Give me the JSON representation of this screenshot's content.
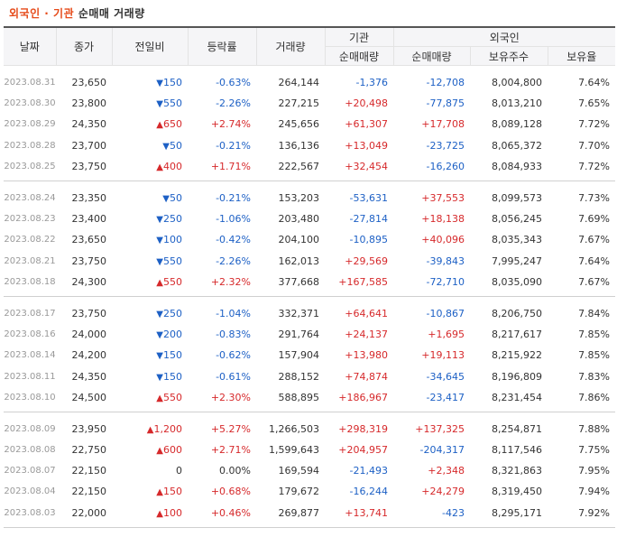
{
  "title": {
    "highlight": "외국인 · 기관",
    "rest": "순매매 거래량"
  },
  "headers": {
    "date": "날짜",
    "close": "종가",
    "change": "전일비",
    "rate": "등락률",
    "volume": "거래량",
    "inst": "기관",
    "foreign": "외국인",
    "inst_net": "순매매량",
    "foreign_net": "순매매량",
    "holdings": "보유주수",
    "ratio": "보유율"
  },
  "colors": {
    "up": "#d6292b",
    "down": "#1d60c5"
  },
  "groups": [
    [
      {
        "date": "2023.08.31",
        "close": "23,650",
        "dir": "down",
        "change": "150",
        "rate": "-0.63%",
        "volume": "264,144",
        "inst": "-1,376",
        "foreign": "-12,708",
        "holdings": "8,004,800",
        "ratio": "7.64%"
      },
      {
        "date": "2023.08.30",
        "close": "23,800",
        "dir": "down",
        "change": "550",
        "rate": "-2.26%",
        "volume": "227,215",
        "inst": "+20,498",
        "foreign": "-77,875",
        "holdings": "8,013,210",
        "ratio": "7.65%"
      },
      {
        "date": "2023.08.29",
        "close": "24,350",
        "dir": "up",
        "change": "650",
        "rate": "+2.74%",
        "volume": "245,656",
        "inst": "+61,307",
        "foreign": "+17,708",
        "holdings": "8,089,128",
        "ratio": "7.72%"
      },
      {
        "date": "2023.08.28",
        "close": "23,700",
        "dir": "down",
        "change": "50",
        "rate": "-0.21%",
        "volume": "136,136",
        "inst": "+13,049",
        "foreign": "-23,725",
        "holdings": "8,065,372",
        "ratio": "7.70%"
      },
      {
        "date": "2023.08.25",
        "close": "23,750",
        "dir": "up",
        "change": "400",
        "rate": "+1.71%",
        "volume": "222,567",
        "inst": "+32,454",
        "foreign": "-16,260",
        "holdings": "8,084,933",
        "ratio": "7.72%"
      }
    ],
    [
      {
        "date": "2023.08.24",
        "close": "23,350",
        "dir": "down",
        "change": "50",
        "rate": "-0.21%",
        "volume": "153,203",
        "inst": "-53,631",
        "foreign": "+37,553",
        "holdings": "8,099,573",
        "ratio": "7.73%"
      },
      {
        "date": "2023.08.23",
        "close": "23,400",
        "dir": "down",
        "change": "250",
        "rate": "-1.06%",
        "volume": "203,480",
        "inst": "-27,814",
        "foreign": "+18,138",
        "holdings": "8,056,245",
        "ratio": "7.69%"
      },
      {
        "date": "2023.08.22",
        "close": "23,650",
        "dir": "down",
        "change": "100",
        "rate": "-0.42%",
        "volume": "204,100",
        "inst": "-10,895",
        "foreign": "+40,096",
        "holdings": "8,035,343",
        "ratio": "7.67%"
      },
      {
        "date": "2023.08.21",
        "close": "23,750",
        "dir": "down",
        "change": "550",
        "rate": "-2.26%",
        "volume": "162,013",
        "inst": "+29,569",
        "foreign": "-39,843",
        "holdings": "7,995,247",
        "ratio": "7.64%"
      },
      {
        "date": "2023.08.18",
        "close": "24,300",
        "dir": "up",
        "change": "550",
        "rate": "+2.32%",
        "volume": "377,668",
        "inst": "+167,585",
        "foreign": "-72,710",
        "holdings": "8,035,090",
        "ratio": "7.67%"
      }
    ],
    [
      {
        "date": "2023.08.17",
        "close": "23,750",
        "dir": "down",
        "change": "250",
        "rate": "-1.04%",
        "volume": "332,371",
        "inst": "+64,641",
        "foreign": "-10,867",
        "holdings": "8,206,750",
        "ratio": "7.84%"
      },
      {
        "date": "2023.08.16",
        "close": "24,000",
        "dir": "down",
        "change": "200",
        "rate": "-0.83%",
        "volume": "291,764",
        "inst": "+24,137",
        "foreign": "+1,695",
        "holdings": "8,217,617",
        "ratio": "7.85%"
      },
      {
        "date": "2023.08.14",
        "close": "24,200",
        "dir": "down",
        "change": "150",
        "rate": "-0.62%",
        "volume": "157,904",
        "inst": "+13,980",
        "foreign": "+19,113",
        "holdings": "8,215,922",
        "ratio": "7.85%"
      },
      {
        "date": "2023.08.11",
        "close": "24,350",
        "dir": "down",
        "change": "150",
        "rate": "-0.61%",
        "volume": "288,152",
        "inst": "+74,874",
        "foreign": "-34,645",
        "holdings": "8,196,809",
        "ratio": "7.83%"
      },
      {
        "date": "2023.08.10",
        "close": "24,500",
        "dir": "up",
        "change": "550",
        "rate": "+2.30%",
        "volume": "588,895",
        "inst": "+186,967",
        "foreign": "-23,417",
        "holdings": "8,231,454",
        "ratio": "7.86%"
      }
    ],
    [
      {
        "date": "2023.08.09",
        "close": "23,950",
        "dir": "up",
        "change": "1,200",
        "rate": "+5.27%",
        "volume": "1,266,503",
        "inst": "+298,319",
        "foreign": "+137,325",
        "holdings": "8,254,871",
        "ratio": "7.88%"
      },
      {
        "date": "2023.08.08",
        "close": "22,750",
        "dir": "up",
        "change": "600",
        "rate": "+2.71%",
        "volume": "1,599,643",
        "inst": "+204,957",
        "foreign": "-204,317",
        "holdings": "8,117,546",
        "ratio": "7.75%"
      },
      {
        "date": "2023.08.07",
        "close": "22,150",
        "dir": "none",
        "change": "0",
        "rate": "0.00%",
        "volume": "169,594",
        "inst": "-21,493",
        "foreign": "+2,348",
        "holdings": "8,321,863",
        "ratio": "7.95%"
      },
      {
        "date": "2023.08.04",
        "close": "22,150",
        "dir": "up",
        "change": "150",
        "rate": "+0.68%",
        "volume": "179,672",
        "inst": "-16,244",
        "foreign": "+24,279",
        "holdings": "8,319,450",
        "ratio": "7.94%"
      },
      {
        "date": "2023.08.03",
        "close": "22,000",
        "dir": "up",
        "change": "100",
        "rate": "+0.46%",
        "volume": "269,877",
        "inst": "+13,741",
        "foreign": "-423",
        "holdings": "8,295,171",
        "ratio": "7.92%"
      }
    ]
  ]
}
